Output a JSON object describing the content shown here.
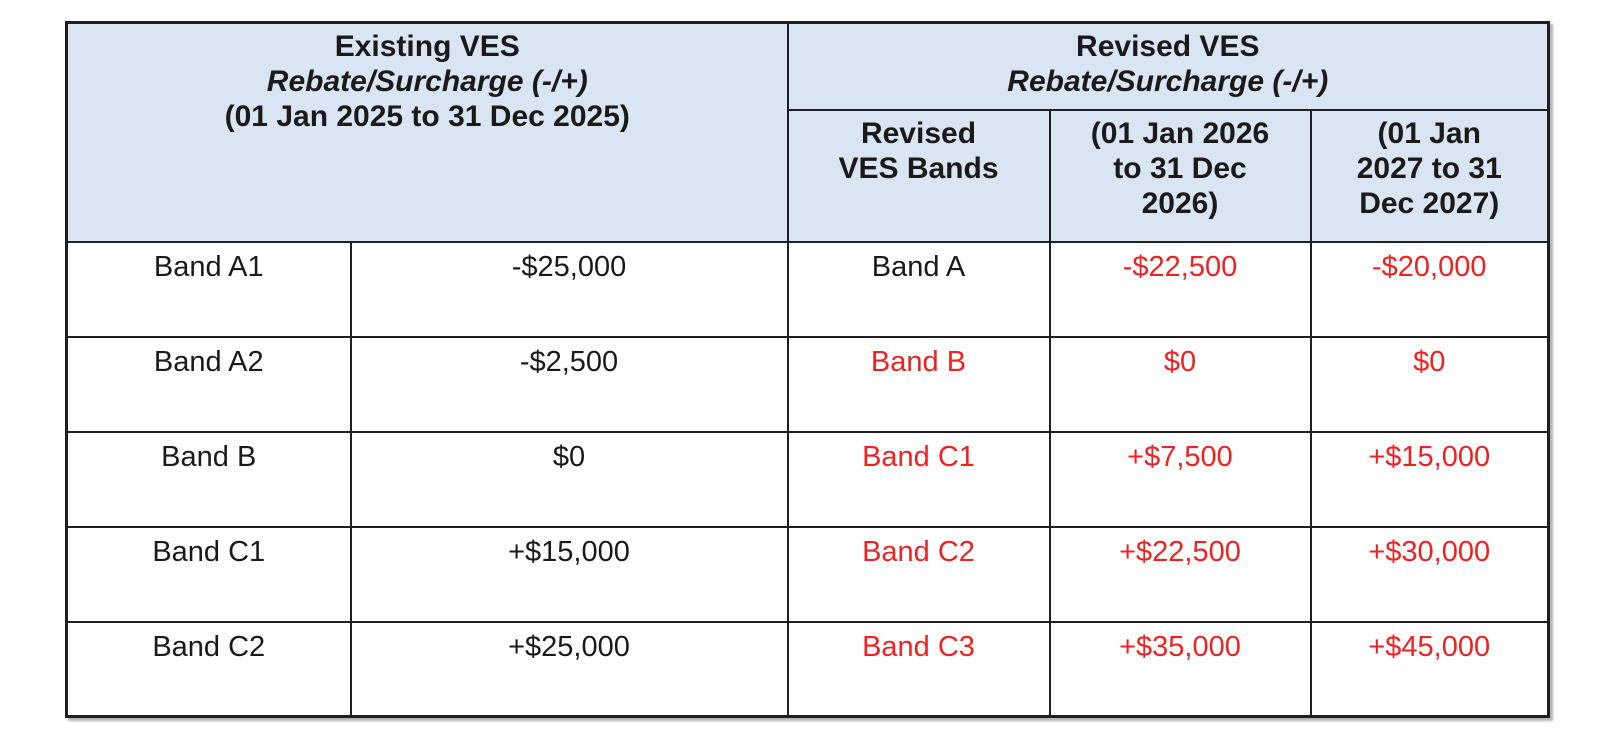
{
  "table": {
    "existing": {
      "title": "Existing VES",
      "subtitle": "Rebate/Surcharge (-/+)",
      "period": "(01 Jan 2025 to 31 Dec 2025)"
    },
    "revised": {
      "title": "Revised VES",
      "subtitle": "Rebate/Surcharge (-/+)",
      "columns": [
        "Revised\nVES Bands",
        "(01 Jan 2026\nto 31 Dec\n2026)",
        "(01 Jan\n2027 to 31\nDec 2027)"
      ]
    },
    "rows": [
      {
        "existing_band": "Band A1",
        "existing_value": "-$25,000",
        "revised_band": "Band A",
        "revised_band_color": "black",
        "value_2026": "-$22,500",
        "value_2027": "-$20,000"
      },
      {
        "existing_band": "Band A2",
        "existing_value": "-$2,500",
        "revised_band": "Band B",
        "revised_band_color": "red",
        "value_2026": "$0",
        "value_2027": "$0"
      },
      {
        "existing_band": "Band B",
        "existing_value": "$0",
        "revised_band": "Band C1",
        "revised_band_color": "red",
        "value_2026": "+$7,500",
        "value_2027": "+$15,000"
      },
      {
        "existing_band": "Band C1",
        "existing_value": "+$15,000",
        "revised_band": "Band C2",
        "revised_band_color": "red",
        "value_2026": "+$22,500",
        "value_2027": "+$30,000"
      },
      {
        "existing_band": "Band C2",
        "existing_value": "+$25,000",
        "revised_band": "Band C3",
        "revised_band_color": "red",
        "value_2026": "+$35,000",
        "value_2027": "+$45,000"
      }
    ],
    "colors": {
      "header_bg": "#D9E5F3",
      "highlight_red": "#EE2222",
      "border": "#1F1F1F",
      "text": "#1A1A1A"
    }
  }
}
